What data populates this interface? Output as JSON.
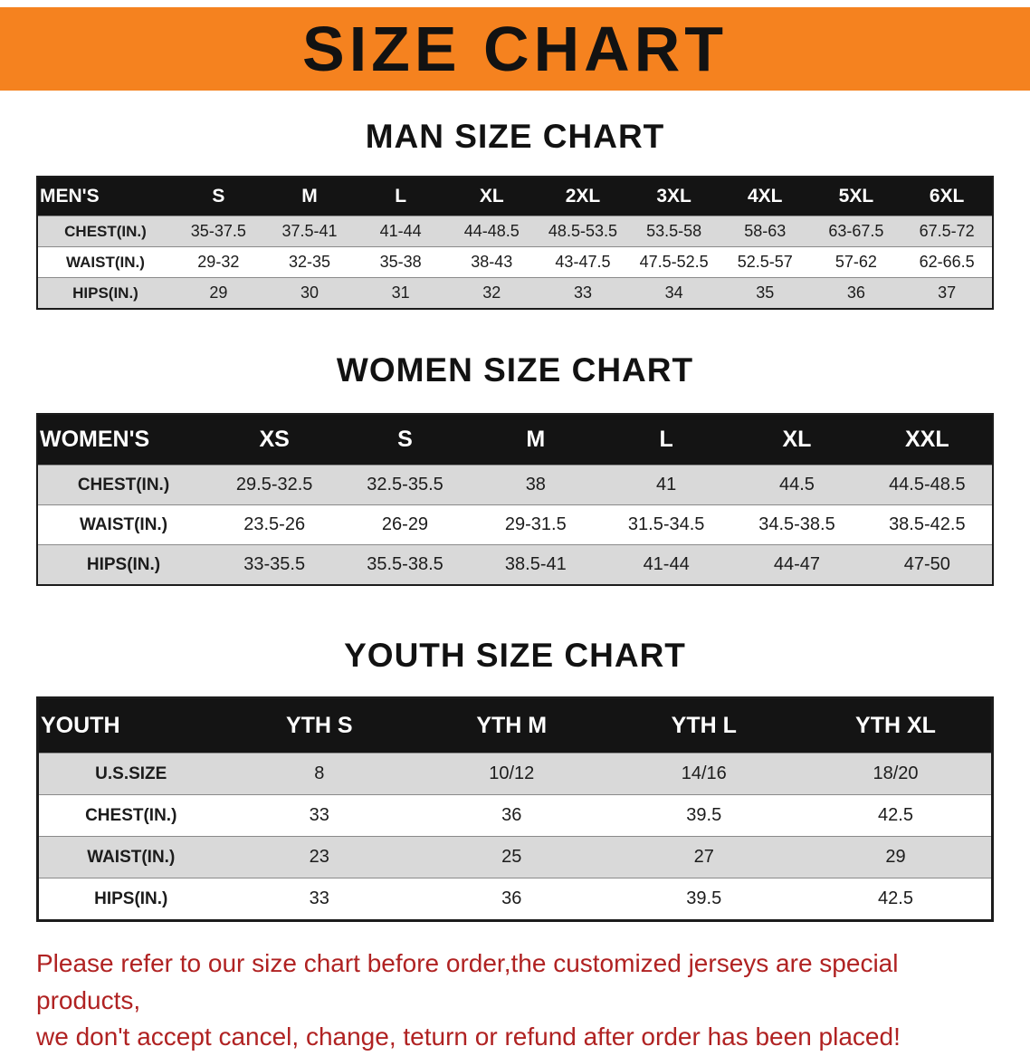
{
  "banner": {
    "title": "SIZE CHART",
    "bg_color": "#f5821f",
    "text_color": "#121212"
  },
  "colors": {
    "table_header_bg": "#141414",
    "table_stripe": "#d9d9d9",
    "footer_text": "#b02222"
  },
  "sections": {
    "men": {
      "title": "MAN SIZE CHART",
      "table": {
        "header": [
          "MEN'S",
          "S",
          "M",
          "L",
          "XL",
          "2XL",
          "3XL",
          "4XL",
          "5XL",
          "6XL"
        ],
        "rows": [
          [
            "CHEST(IN.)",
            "35-37.5",
            "37.5-41",
            "41-44",
            "44-48.5",
            "48.5-53.5",
            "53.5-58",
            "58-63",
            "63-67.5",
            "67.5-72"
          ],
          [
            "WAIST(IN.)",
            "29-32",
            "32-35",
            "35-38",
            "38-43",
            "43-47.5",
            "47.5-52.5",
            "52.5-57",
            "57-62",
            "62-66.5"
          ],
          [
            "HIPS(IN.)",
            "29",
            "30",
            "31",
            "32",
            "33",
            "34",
            "35",
            "36",
            "37"
          ]
        ]
      }
    },
    "women": {
      "title": "WOMEN SIZE CHART",
      "table": {
        "header": [
          "WOMEN'S",
          "XS",
          "S",
          "M",
          "L",
          "XL",
          "XXL"
        ],
        "rows": [
          [
            "CHEST(IN.)",
            "29.5-32.5",
            "32.5-35.5",
            "38",
            "41",
            "44.5",
            "44.5-48.5"
          ],
          [
            "WAIST(IN.)",
            "23.5-26",
            "26-29",
            "29-31.5",
            "31.5-34.5",
            "34.5-38.5",
            "38.5-42.5"
          ],
          [
            "HIPS(IN.)",
            "33-35.5",
            "35.5-38.5",
            "38.5-41",
            "41-44",
            "44-47",
            "47-50"
          ]
        ]
      }
    },
    "youth": {
      "title": "YOUTH SIZE CHART",
      "table": {
        "header": [
          "YOUTH",
          "YTH S",
          "YTH M",
          "YTH L",
          "YTH XL"
        ],
        "rows": [
          [
            "U.S.SIZE",
            "8",
            "10/12",
            "14/16",
            "18/20"
          ],
          [
            "CHEST(IN.)",
            "33",
            "36",
            "39.5",
            "42.5"
          ],
          [
            "WAIST(IN.)",
            "23",
            "25",
            "27",
            "29"
          ],
          [
            "HIPS(IN.)",
            "33",
            "36",
            "39.5",
            "42.5"
          ]
        ]
      }
    }
  },
  "footer": {
    "line1": "Please refer to our size chart before order,the customized jerseys are special products,",
    "line2": "we don't accept cancel, change, teturn or refund after order has been placed!"
  }
}
